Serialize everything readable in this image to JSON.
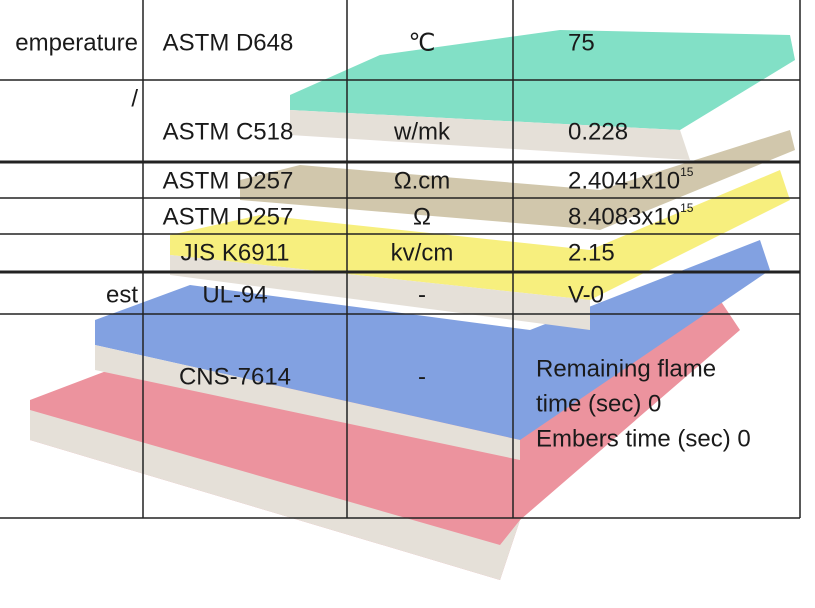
{
  "table": {
    "rows": [
      {
        "property": "emperature",
        "standard": "ASTM D648",
        "unit": "℃",
        "value": "75"
      },
      {
        "property": "/",
        "standard": "ASTM C518",
        "unit": "w/mk",
        "value": "0.228"
      },
      {
        "standard": "ASTM D257",
        "unit": "Ω.cm",
        "value": "2.4041x10",
        "exponent": "15"
      },
      {
        "standard": "ASTM D257",
        "unit": "Ω",
        "value": "8.4083x10",
        "exponent": "15"
      },
      {
        "standard": "JIS K6911",
        "unit": "kv/cm",
        "value": "2.15"
      },
      {
        "property": "est",
        "standard": "UL-94",
        "unit": "-",
        "value": "V-0"
      },
      {
        "standard": "CNS-7614",
        "unit": "-",
        "value_lines": [
          "Remaining flame",
          "time (sec) 0",
          "Embers time (sec) 0"
        ]
      }
    ]
  }
}
